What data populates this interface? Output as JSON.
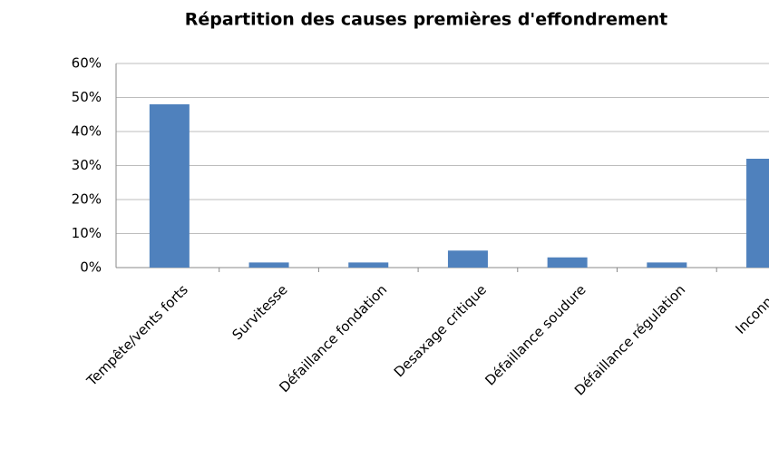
{
  "chart_data": {
    "type": "bar",
    "title": "Répartition des causes premières d'effondrement",
    "categories": [
      "Tempête/vents forts",
      "Survitesse",
      "Défaillance fondation",
      "Desaxage  critique",
      "Défaillance soudure",
      "Défaillance régulation",
      "Inconnue"
    ],
    "values": [
      48,
      1.5,
      1.5,
      5,
      3,
      1.5,
      32
    ],
    "color": "#4f81bd",
    "ylim": [
      0,
      60
    ],
    "yticks": [
      {
        "value": 0,
        "label": "0%"
      },
      {
        "value": 10,
        "label": "10%"
      },
      {
        "value": 20,
        "label": "20%"
      },
      {
        "value": 30,
        "label": "30%"
      },
      {
        "value": 40,
        "label": "40%"
      },
      {
        "value": 50,
        "label": "50%"
      },
      {
        "value": 60,
        "label": "60%"
      }
    ],
    "grid": true
  }
}
